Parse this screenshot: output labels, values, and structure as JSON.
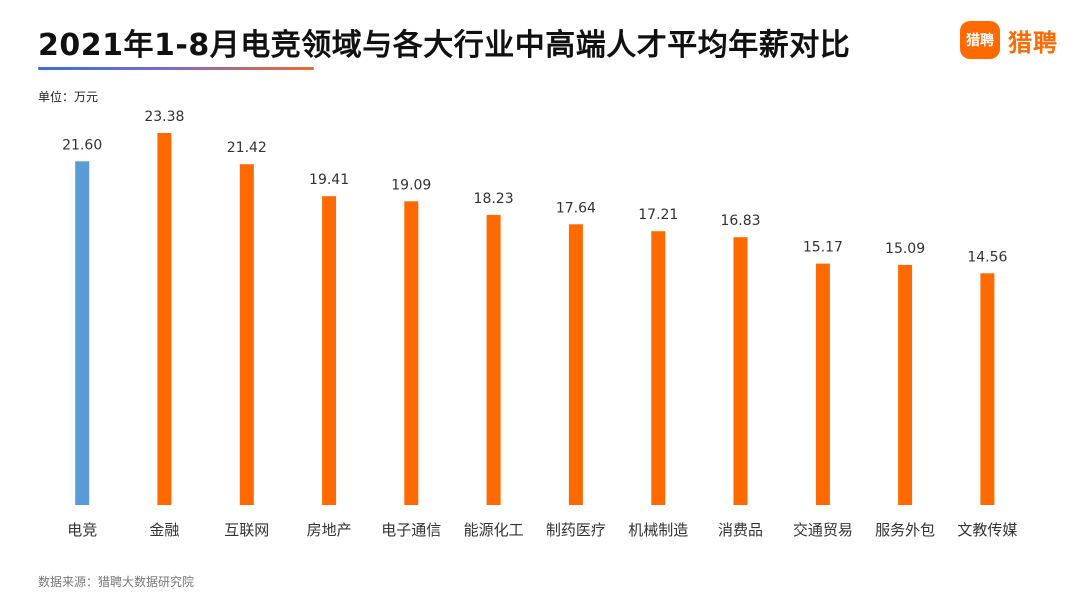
{
  "header": {
    "title": "2021年1-8月电竞领域与各大行业中高端人才平均年薪对比",
    "logo_icon_text": "猎聘",
    "logo_text": "猎聘"
  },
  "unit_label": "单位：万元",
  "source_label": "数据来源：猎聘大数据研究院",
  "colors": {
    "highlight": "#5b9bd5",
    "bar": "#ff6a00",
    "brand": "#ff6a00"
  },
  "chart_data": {
    "type": "bar",
    "title": "2021年1-8月电竞领域与各大行业中高端人才平均年薪对比",
    "ylabel": "单位：万元",
    "categories": [
      "电竞",
      "金融",
      "互联网",
      "房地产",
      "电子通信",
      "能源化工",
      "制药医疗",
      "机械制造",
      "消费品",
      "交通贸易",
      "服务外包",
      "文教传媒"
    ],
    "values": [
      21.6,
      23.38,
      21.42,
      19.41,
      19.09,
      18.23,
      17.64,
      17.21,
      16.83,
      15.17,
      15.09,
      14.56
    ],
    "labels": [
      "21.60",
      "23.38",
      "21.42",
      "19.41",
      "19.09",
      "18.23",
      "17.64",
      "17.21",
      "16.83",
      "15.17",
      "15.09",
      "14.56"
    ],
    "highlight_index": 0,
    "ylim": [
      0,
      23.38
    ],
    "grid": false,
    "legend": "none"
  }
}
